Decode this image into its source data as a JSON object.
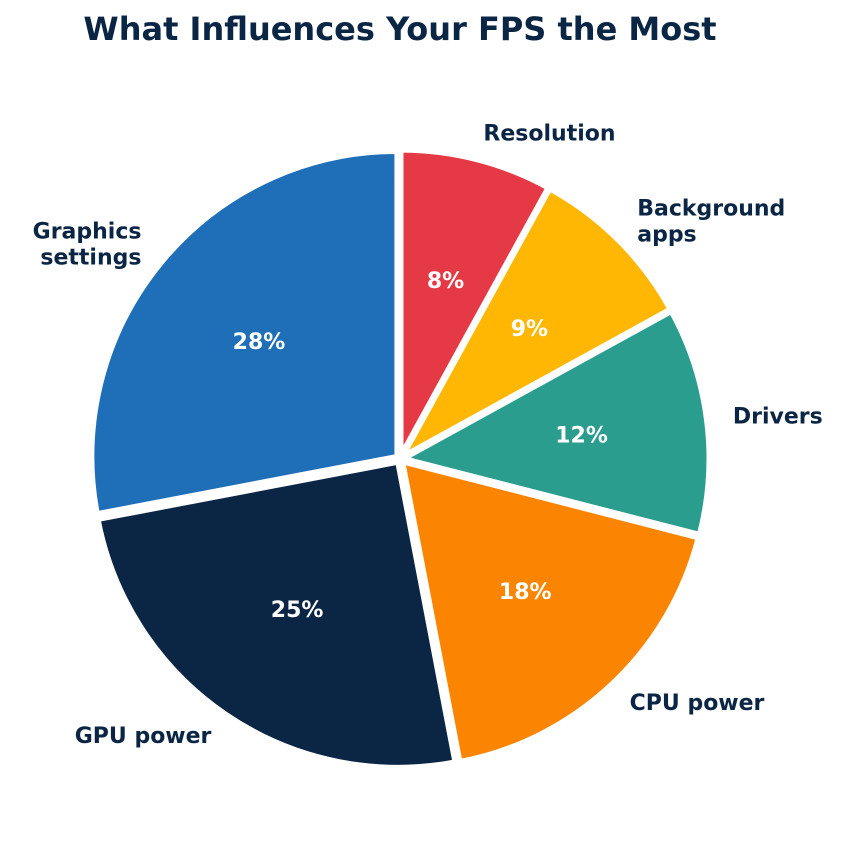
{
  "chart_data": {
    "type": "pie",
    "title": "What Influences Your FPS the Most",
    "start_angle_deg": 90,
    "direction": "clockwise",
    "slices": [
      {
        "label": "Resolution",
        "value": 8,
        "display": "8%",
        "color": "#e63946"
      },
      {
        "label": "Background\napps",
        "value": 9,
        "display": "9%",
        "color": "#ffb703"
      },
      {
        "label": "Drivers",
        "value": 12,
        "display": "12%",
        "color": "#2a9d8f"
      },
      {
        "label": "CPU power",
        "value": 18,
        "display": "18%",
        "color": "#fb8500"
      },
      {
        "label": "GPU power",
        "value": 25,
        "display": "25%",
        "color": "#0b2544"
      },
      {
        "label": "Graphics\nsettings",
        "value": 28,
        "display": "28%",
        "color": "#1f6fb8"
      }
    ]
  }
}
